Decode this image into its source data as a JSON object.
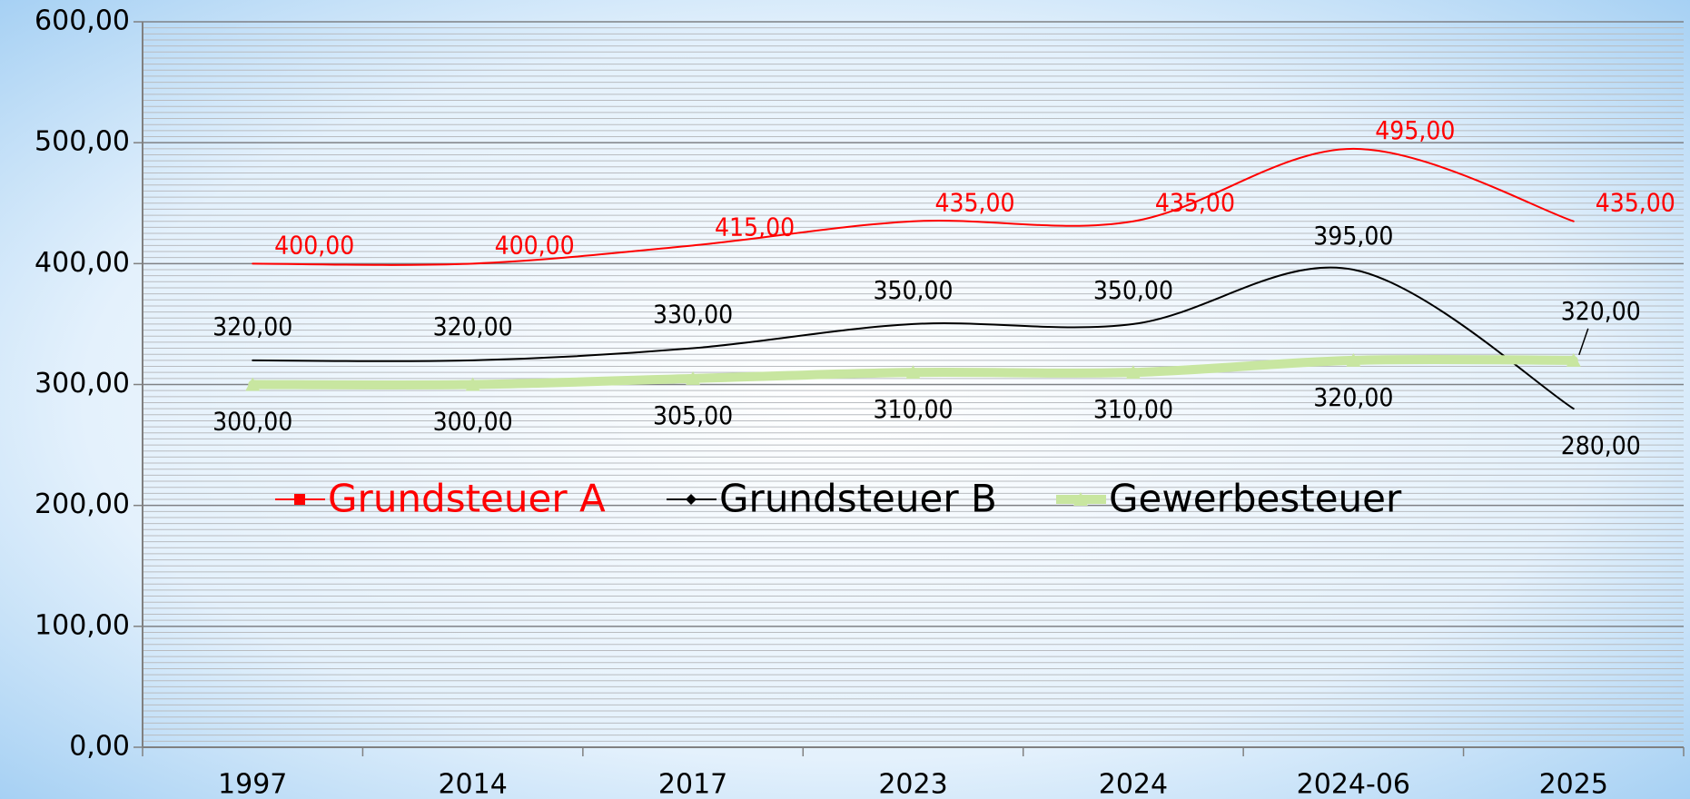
{
  "chart_data": {
    "type": "line",
    "categories": [
      "1997",
      "2014",
      "2017",
      "2023",
      "2024",
      "2024-06",
      "2025"
    ],
    "series": [
      {
        "name": "Grundsteuer A",
        "color": "#ff0000",
        "values": [
          400,
          400,
          415,
          435,
          435,
          495,
          435
        ],
        "value_labels": [
          "400,00",
          "400,00",
          "415,00",
          "435,00",
          "435,00",
          "495,00",
          "435,00"
        ]
      },
      {
        "name": "Grundsteuer B",
        "color": "#000000",
        "values": [
          320,
          320,
          330,
          350,
          350,
          395,
          280
        ],
        "value_labels": [
          "320,00",
          "320,00",
          "330,00",
          "350,00",
          "350,00",
          "395,00",
          "280,00"
        ]
      },
      {
        "name": "Gewerbesteuer",
        "color": "#c8e6a0",
        "values": [
          300,
          300,
          305,
          310,
          310,
          320,
          320
        ],
        "value_labels": [
          "300,00",
          "300,00",
          "305,00",
          "310,00",
          "310,00",
          "320,00",
          "320,00"
        ]
      }
    ],
    "ylim": [
      0,
      600
    ],
    "yticks": [
      {
        "value": 0,
        "label": "0,00"
      },
      {
        "value": 100,
        "label": "100,00"
      },
      {
        "value": 200,
        "label": "200,00"
      },
      {
        "value": 300,
        "label": "300,00"
      },
      {
        "value": 400,
        "label": "400,00"
      },
      {
        "value": 500,
        "label": "500,00"
      },
      {
        "value": 600,
        "label": "600,00"
      }
    ],
    "grid": true,
    "legend": "center"
  }
}
